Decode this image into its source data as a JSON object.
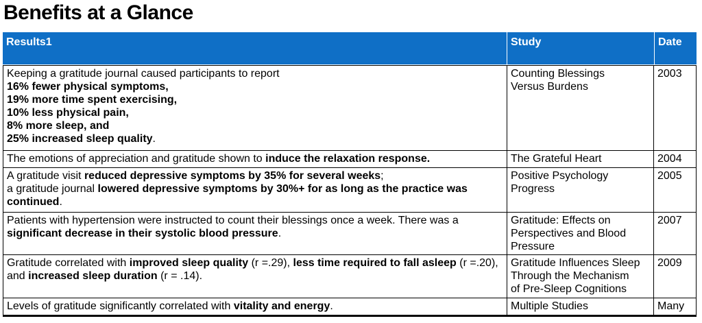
{
  "page_title": "Benefits at a Glance",
  "colors": {
    "header_bg": "#0f6fc6",
    "header_text": "#ffffff",
    "body_text": "#000000",
    "grid_line": "#000000"
  },
  "table": {
    "headers": [
      "Results1",
      "Study",
      "Date"
    ],
    "rows": [
      {
        "result_segments": [
          {
            "t": "Keeping a gratitude journal caused participants to report\n",
            "b": false
          },
          {
            "t": "16% fewer physical symptoms,\n19% more time spent exercising,\n10% less physical pain,\n8% more sleep, and\n25% increased sleep quality",
            "b": true
          },
          {
            "t": ".",
            "b": false
          }
        ],
        "study": "Counting Blessings\nVersus Burdens",
        "date": "2003"
      },
      {
        "result_segments": [
          {
            "t": "The emotions of appreciation and gratitude shown to ",
            "b": false
          },
          {
            "t": "induce the relaxation response.",
            "b": true
          }
        ],
        "study": "The Grateful Heart",
        "date": "2004"
      },
      {
        "result_segments": [
          {
            "t": "A gratitude visit ",
            "b": false
          },
          {
            "t": "reduced depressive symptoms by 35% for several weeks",
            "b": true
          },
          {
            "t": ";\na gratitude journal ",
            "b": false
          },
          {
            "t": "lowered depressive symptoms by 30%+ for as long as the practice was continued",
            "b": true
          },
          {
            "t": ".",
            "b": false
          }
        ],
        "study": "Positive Psychology\nProgress",
        "date": "2005"
      },
      {
        "result_segments": [
          {
            "t": "Patients with hypertension were instructed to count their blessings once a week. There was a ",
            "b": false
          },
          {
            "t": "significant decrease in their systolic blood pressure",
            "b": true
          },
          {
            "t": ".",
            "b": false
          }
        ],
        "study": "Gratitude: Effects on\nPerspectives and Blood\nPressure",
        "date": "2007"
      },
      {
        "result_segments": [
          {
            "t": "Gratitude correlated with ",
            "b": false
          },
          {
            "t": "improved sleep quality",
            "b": true
          },
          {
            "t": " (r =.29), ",
            "b": false
          },
          {
            "t": "less time required to fall asleep",
            "b": true
          },
          {
            "t": " (r =.20), and ",
            "b": false
          },
          {
            "t": "increased sleep duration",
            "b": true
          },
          {
            "t": " (r = .14).",
            "b": false
          }
        ],
        "study": "Gratitude Influences Sleep\nThrough the Mechanism\nof Pre-Sleep Cognitions",
        "date": "2009"
      },
      {
        "result_segments": [
          {
            "t": "Levels of gratitude significantly correlated with ",
            "b": false
          },
          {
            "t": "vitality and energy",
            "b": true
          },
          {
            "t": ".",
            "b": false
          }
        ],
        "study": "Multiple Studies",
        "date": "Many"
      }
    ]
  }
}
